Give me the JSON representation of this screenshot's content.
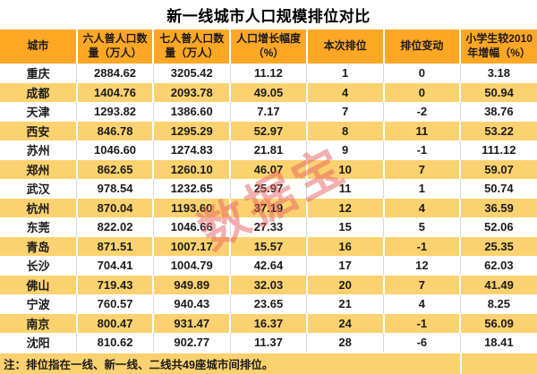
{
  "title": "新一线城市人口规模排位对比",
  "watermark": "数据宝",
  "footnote": "注：排位指在一线、新一线、二线共49座城市间排位。",
  "colors": {
    "header_bg": "#FEA725",
    "stripe_bg": "#FBD26F",
    "grid_line": "#D9D9D9",
    "watermark_color": "rgba(231, 98, 98, 0.5)",
    "text": "#1B1B1B"
  },
  "chart_data": {
    "type": "table",
    "title": "新一线城市人口规模排位对比",
    "columns": [
      "城市",
      "六人普人口数量（万人）",
      "七人普人口数量（万人）",
      "人口增长幅度（%）",
      "本次排位",
      "排位变动",
      "小学生较2010年增幅（%）"
    ],
    "header_lines": [
      "城市",
      "六人普人口数\n量（万人）",
      "七人普人口数\n量（万人）",
      "人口增长幅度\n（%）",
      "本次排位",
      "排位变动",
      "小学生较2010\n年增幅（%）"
    ],
    "rows": [
      [
        "重庆",
        "2884.62",
        "3205.42",
        "11.12",
        "1",
        "0",
        "3.18"
      ],
      [
        "成都",
        "1404.76",
        "2093.78",
        "49.05",
        "4",
        "0",
        "50.94"
      ],
      [
        "天津",
        "1293.82",
        "1386.60",
        "7.17",
        "7",
        "-2",
        "38.76"
      ],
      [
        "西安",
        "846.78",
        "1295.29",
        "52.97",
        "8",
        "11",
        "53.22"
      ],
      [
        "苏州",
        "1046.60",
        "1274.83",
        "21.81",
        "9",
        "-1",
        "111.12"
      ],
      [
        "郑州",
        "862.65",
        "1260.10",
        "46.07",
        "10",
        "7",
        "59.07"
      ],
      [
        "武汉",
        "978.54",
        "1232.65",
        "25.97",
        "11",
        "1",
        "50.74"
      ],
      [
        "杭州",
        "870.04",
        "1193.60",
        "37.19",
        "12",
        "4",
        "36.59"
      ],
      [
        "东莞",
        "822.02",
        "1046.66",
        "27.33",
        "15",
        "5",
        "52.06"
      ],
      [
        "青岛",
        "871.51",
        "1007.17",
        "15.57",
        "16",
        "-1",
        "25.35"
      ],
      [
        "长沙",
        "704.41",
        "1004.79",
        "42.64",
        "17",
        "12",
        "62.03"
      ],
      [
        "佛山",
        "719.43",
        "949.89",
        "32.03",
        "20",
        "7",
        "41.49"
      ],
      [
        "宁波",
        "760.57",
        "940.43",
        "23.65",
        "21",
        "4",
        "8.25"
      ],
      [
        "南京",
        "800.47",
        "931.47",
        "16.37",
        "24",
        "-1",
        "56.09"
      ],
      [
        "沈阳",
        "810.62",
        "902.77",
        "11.37",
        "28",
        "-6",
        "18.41"
      ]
    ],
    "footnote": "注：排位指在一线、新一线、二线共49座城市间排位。",
    "layout": {
      "column_count": 7,
      "striped_rows": "even rows (2nd, 4th, ...) highlighted orange",
      "grid": "vertical separators only"
    }
  }
}
